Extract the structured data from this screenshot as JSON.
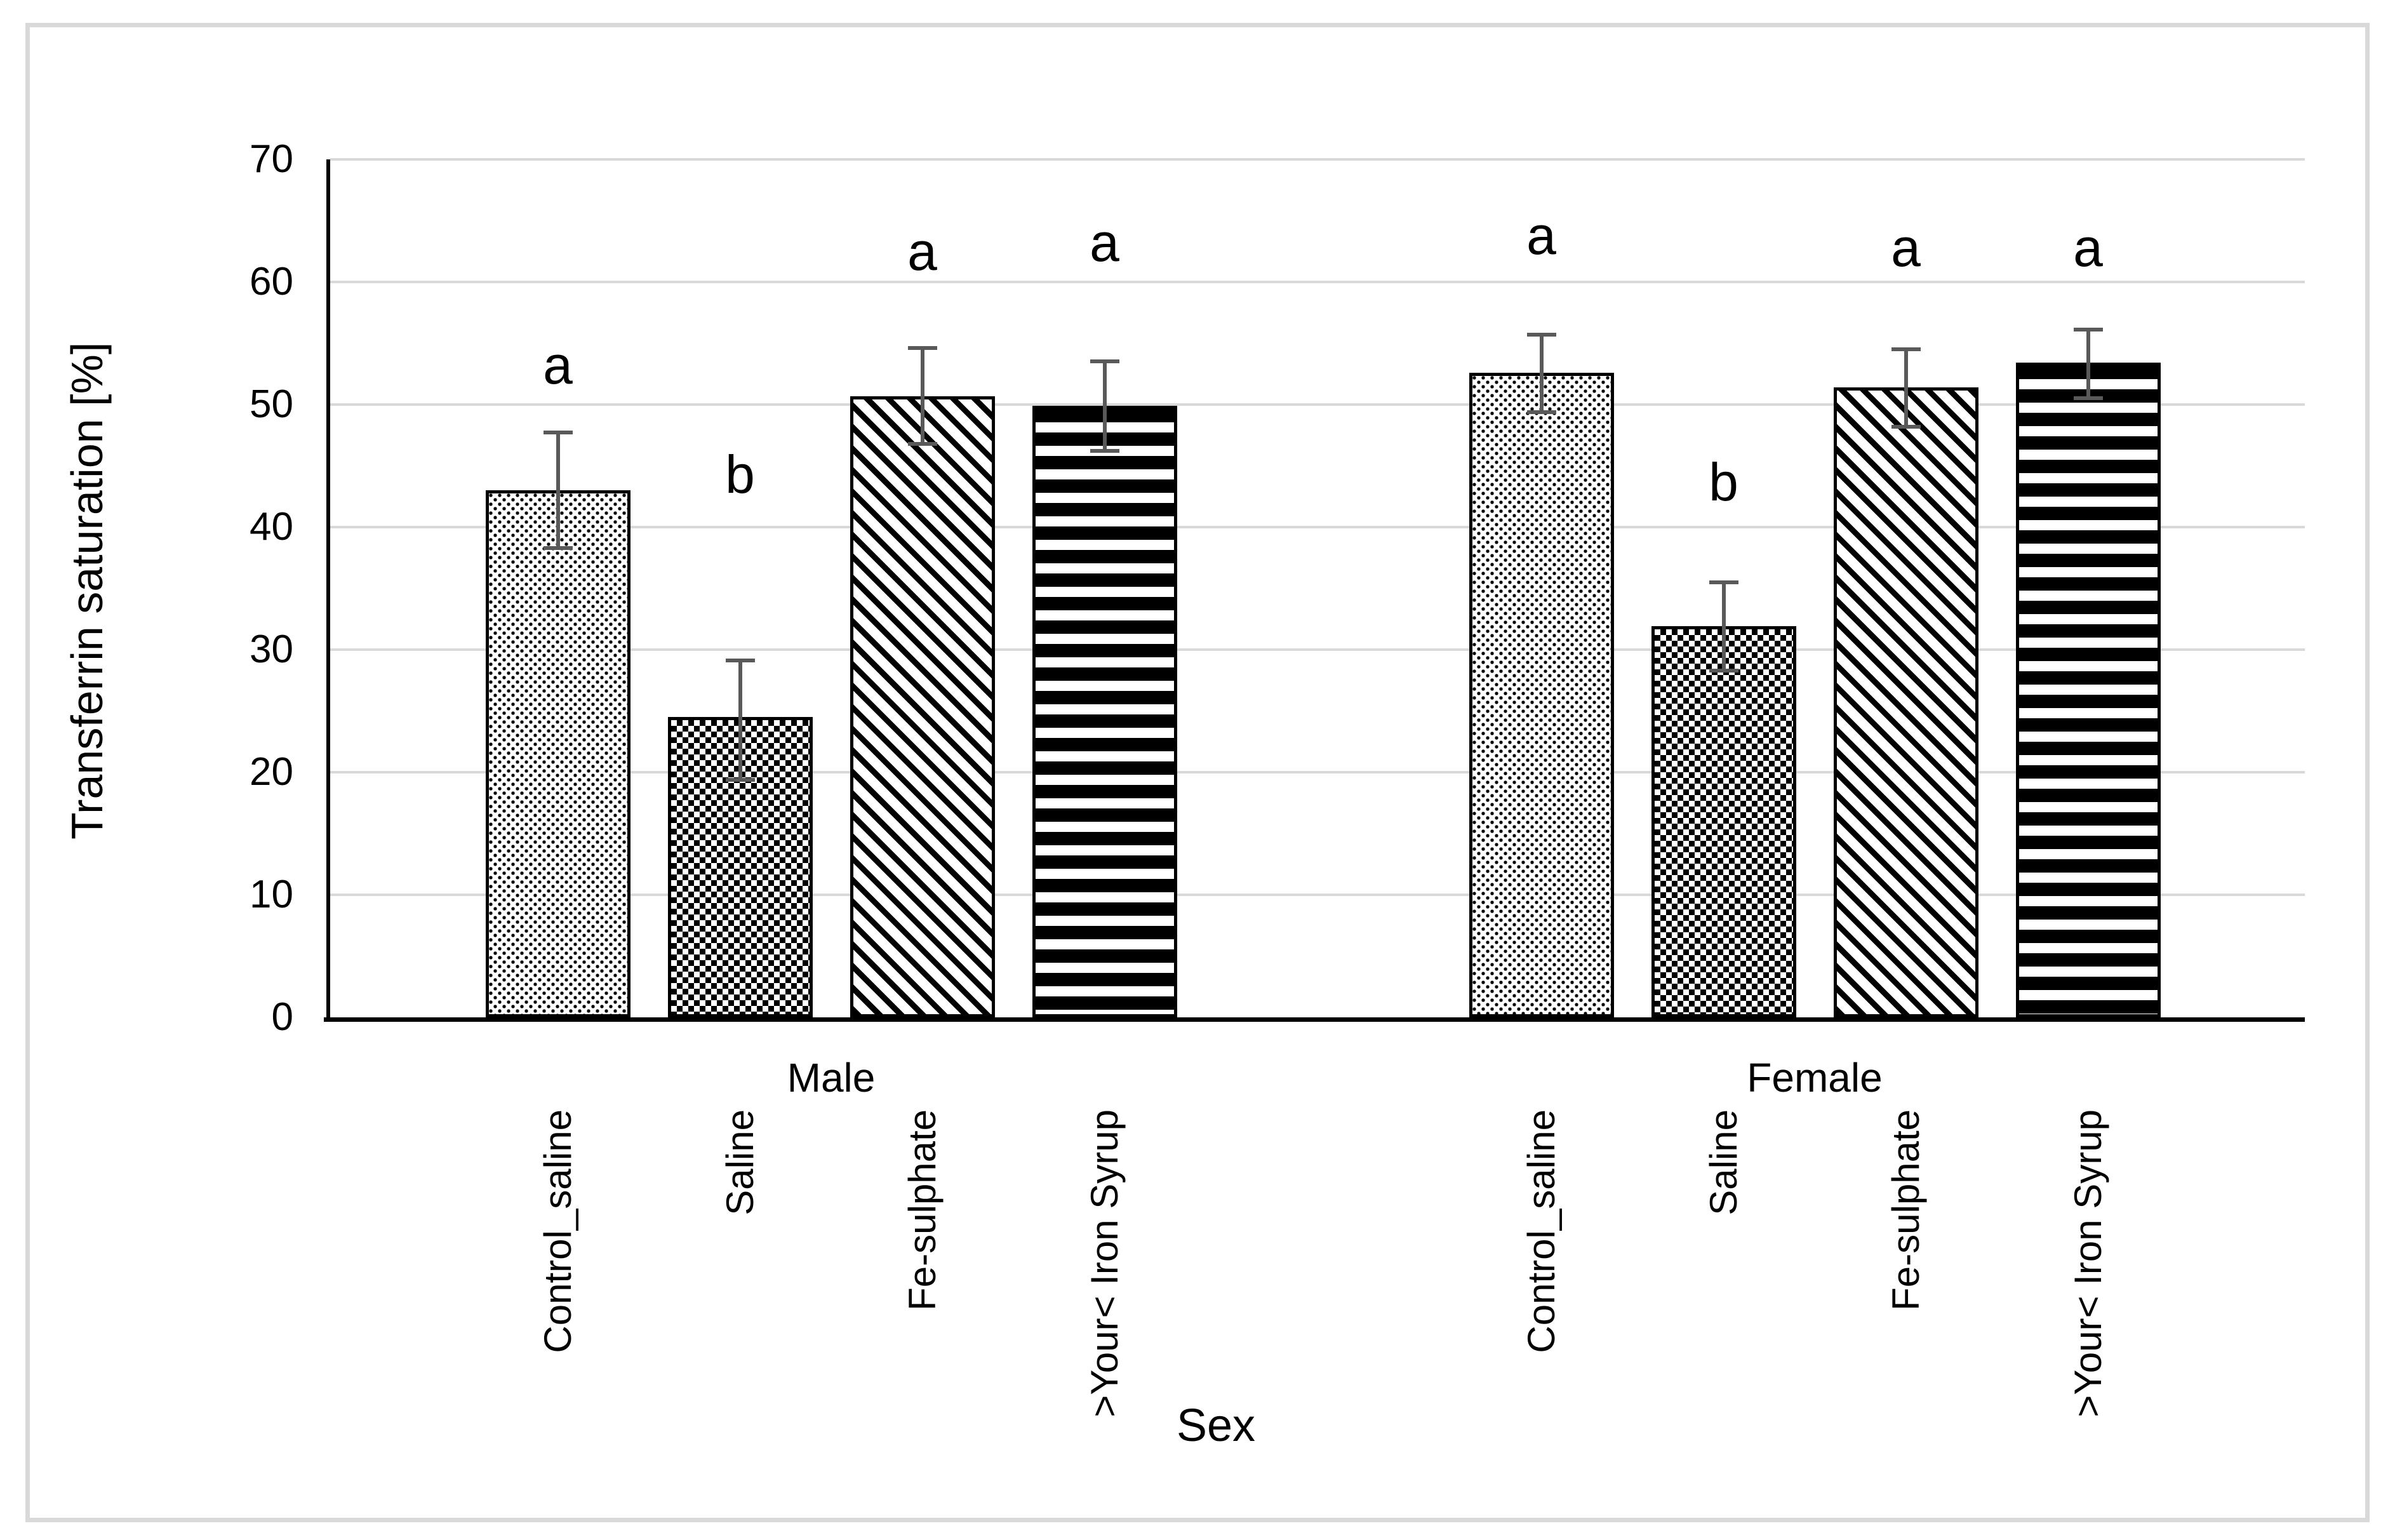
{
  "figure": {
    "background_color": "#ffffff",
    "frame_border_color": "#d9d9d9"
  },
  "chart_data": {
    "type": "bar",
    "title": "",
    "ylabel": "Transferrin saturation [%]",
    "xlabel": "Sex",
    "ylim": [
      0,
      70
    ],
    "yticks": [
      0,
      10,
      20,
      30,
      40,
      50,
      60,
      70
    ],
    "grid": "horizontal",
    "gridline_color": "#d9d9d9",
    "legend": "none",
    "error_bar_color": "#595959",
    "categories": [
      "Control_saline",
      "Saline",
      "Fe-sulphate",
      ">Your< Iron Syrup"
    ],
    "category_patterns": [
      "fine-dots",
      "checkerboard",
      "diagonal-stripes",
      "horizontal-stripes"
    ],
    "groups": [
      {
        "label": "Male",
        "bars": [
          {
            "category": "Control_saline",
            "value": 43.0,
            "err_lo": 38.3,
            "err_hi": 47.7,
            "sig": "a",
            "sig_y": 53.2
          },
          {
            "category": "Saline",
            "value": 24.5,
            "err_lo": 19.4,
            "err_hi": 29.1,
            "sig": "b",
            "sig_y": 44.3
          },
          {
            "category": "Fe-sulphate",
            "value": 50.7,
            "err_lo": 46.8,
            "err_hi": 54.6,
            "sig": "a",
            "sig_y": 62.5
          },
          {
            "category": ">Your< Iron Syrup",
            "value": 49.9,
            "err_lo": 46.2,
            "err_hi": 53.5,
            "sig": "a",
            "sig_y": 63.2
          }
        ]
      },
      {
        "label": "Female",
        "bars": [
          {
            "category": "Control_saline",
            "value": 52.6,
            "err_lo": 49.4,
            "err_hi": 55.7,
            "sig": "a",
            "sig_y": 63.8
          },
          {
            "category": "Saline",
            "value": 31.9,
            "err_lo": 28.3,
            "err_hi": 35.5,
            "sig": "b",
            "sig_y": 43.7
          },
          {
            "category": "Fe-sulphate",
            "value": 51.4,
            "err_lo": 48.2,
            "err_hi": 54.5,
            "sig": "a",
            "sig_y": 62.8
          },
          {
            "category": ">Your< Iron Syrup",
            "value": 53.4,
            "err_lo": 50.5,
            "err_hi": 56.1,
            "sig": "a",
            "sig_y": 62.8
          }
        ]
      }
    ]
  }
}
